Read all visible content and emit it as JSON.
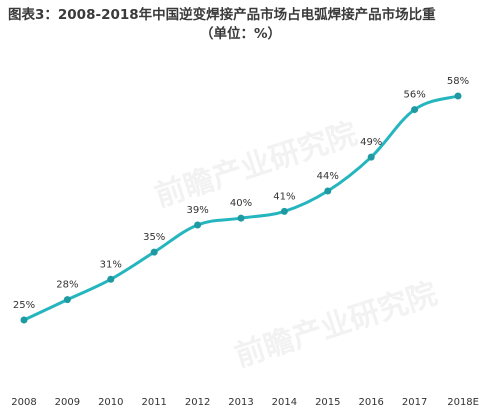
{
  "chart_data": {
    "type": "line",
    "title": "图表3：2008-2018年中国逆变焊接产品市场占电弧焊接产品市场比重",
    "subtitle": "（单位：%）",
    "categories": [
      "2008",
      "2009",
      "2010",
      "2011",
      "2012",
      "2013",
      "2014",
      "2015",
      "2016",
      "2017",
      "2018E"
    ],
    "series": [
      {
        "values": [
          25,
          28,
          31,
          35,
          39,
          40,
          41,
          44,
          49,
          56,
          58
        ]
      }
    ],
    "value_suffix": "%",
    "ylim": [
      20,
      62
    ],
    "grid": false,
    "legend": "none",
    "line_color": "#24b5be",
    "marker_color": "#1f9aa3"
  },
  "watermark": {
    "brand": "前瞻产业研究院"
  }
}
